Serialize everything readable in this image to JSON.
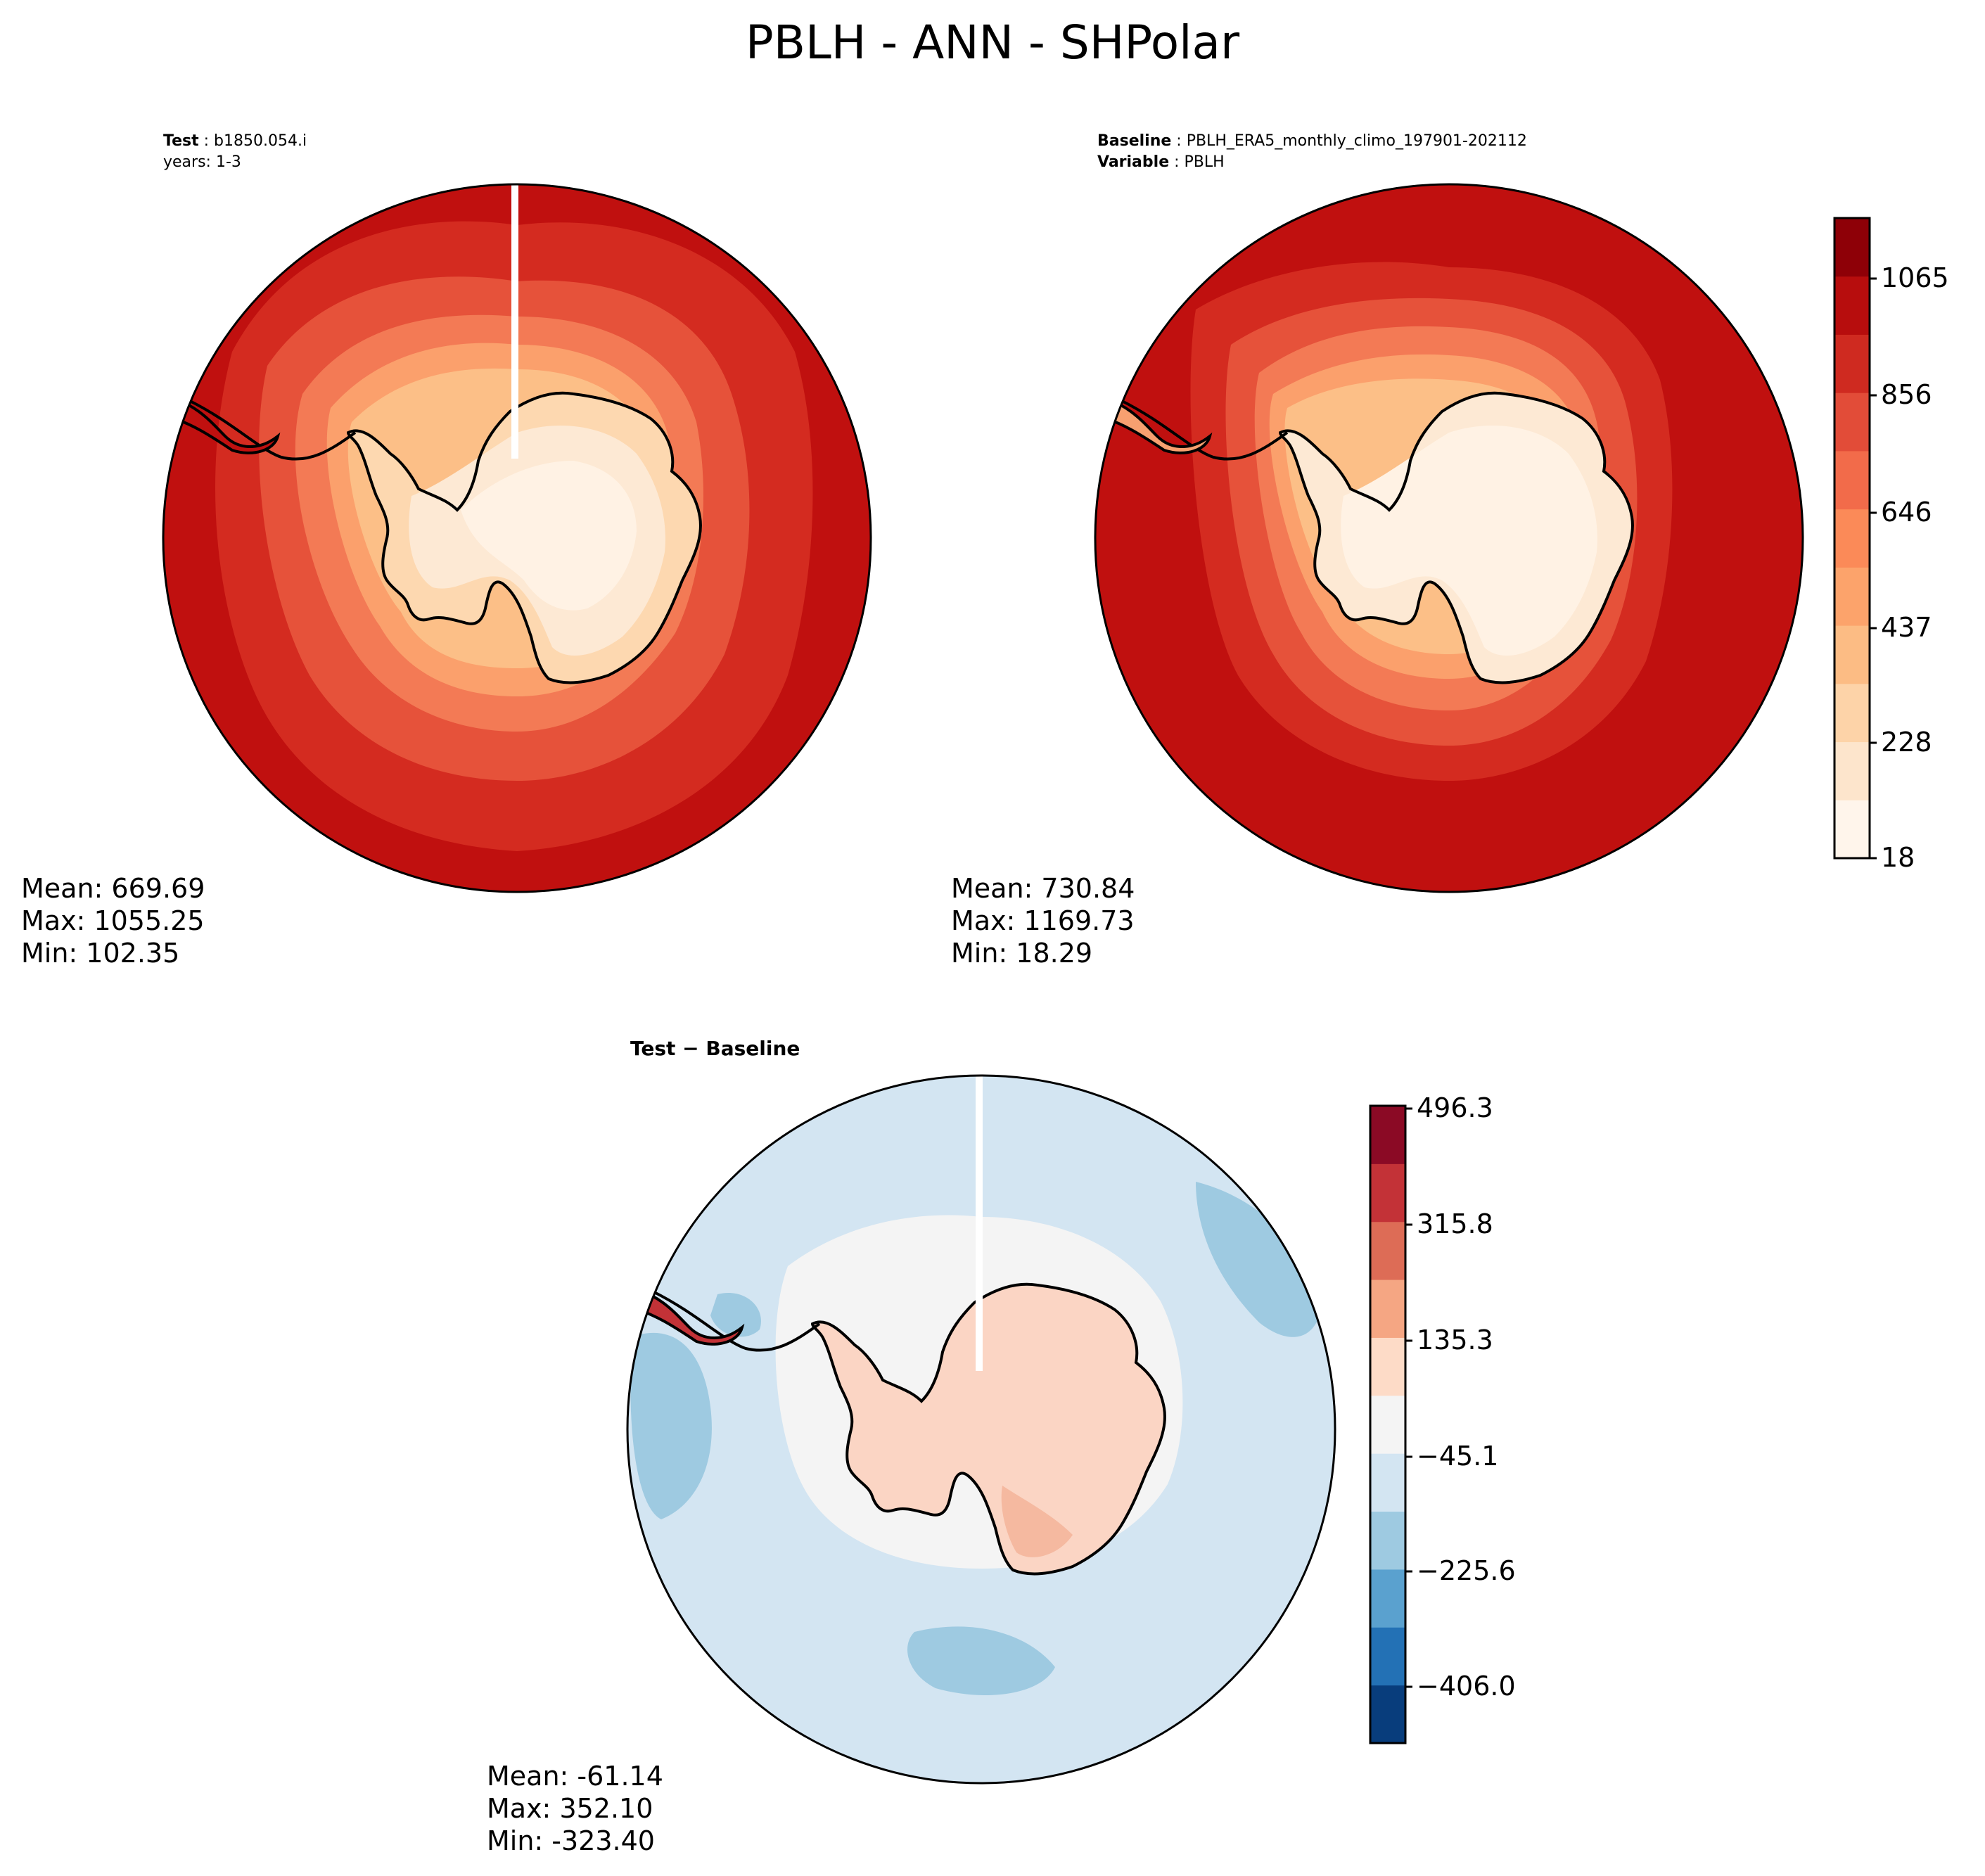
{
  "figure_title": "PBLH - ANN - SHPolar",
  "panels": {
    "test": {
      "label_bold": "Test",
      "label_value": "b1850.054.i",
      "label_line2": "years: 1-3",
      "stats": {
        "mean": "Mean: 669.69",
        "max": "Max: 1055.25",
        "min": "Min: 102.35"
      }
    },
    "baseline": {
      "label_bold": "Baseline",
      "label_value": "PBLH_ERA5_monthly_climo_197901-202112",
      "label2_bold": "Variable",
      "label2_value": "PBLH",
      "stats": {
        "mean": "Mean: 730.84",
        "max": "Max: 1169.73",
        "min": "Min: 18.29"
      }
    },
    "diff": {
      "title_left": "Test",
      "title_sep": " − ",
      "title_right": "Baseline",
      "stats": {
        "mean": "Mean: -61.14",
        "max": "Max: 352.10",
        "min": "Min: -323.40"
      }
    }
  },
  "colorbars": {
    "main": {
      "ticks": [
        "18",
        "228",
        "437",
        "646",
        "856",
        "1065"
      ],
      "colors": [
        "#fff5eb",
        "#fde5cc",
        "#fdd3a8",
        "#fcbc84",
        "#fca36b",
        "#fb8a58",
        "#f26b4a",
        "#e24c38",
        "#cf2a20",
        "#b70d0d",
        "#8e0007"
      ]
    },
    "diff": {
      "ticks": [
        "−406.0",
        "−225.6",
        "−45.1",
        "135.3",
        "315.8",
        "496.3"
      ],
      "colors": [
        "#083d7c",
        "#2371b5",
        "#5aa1cf",
        "#9ecae1",
        "#d3e5f2",
        "#f4f4f4",
        "#fddbc7",
        "#f5a683",
        "#dd6c56",
        "#c33237",
        "#8b0a25"
      ]
    }
  },
  "map_colors": {
    "ocean_far": "#c0100f",
    "ocean_mid": "#d42b20",
    "ocean_near": "#e6523a",
    "band1": "#f37a55",
    "band2": "#fba06c",
    "band3": "#fcbf87",
    "land_edge": "#fdd8b0",
    "land_inner": "#fde9d4",
    "land_core": "#fff2e4",
    "diff_ocean": "#d3e5f2",
    "diff_ocean_dark": "#9ecae1",
    "diff_ice": "#f4f4f4",
    "diff_land": "#fbd5c4",
    "diff_land_pos": "#f5b9a0"
  }
}
